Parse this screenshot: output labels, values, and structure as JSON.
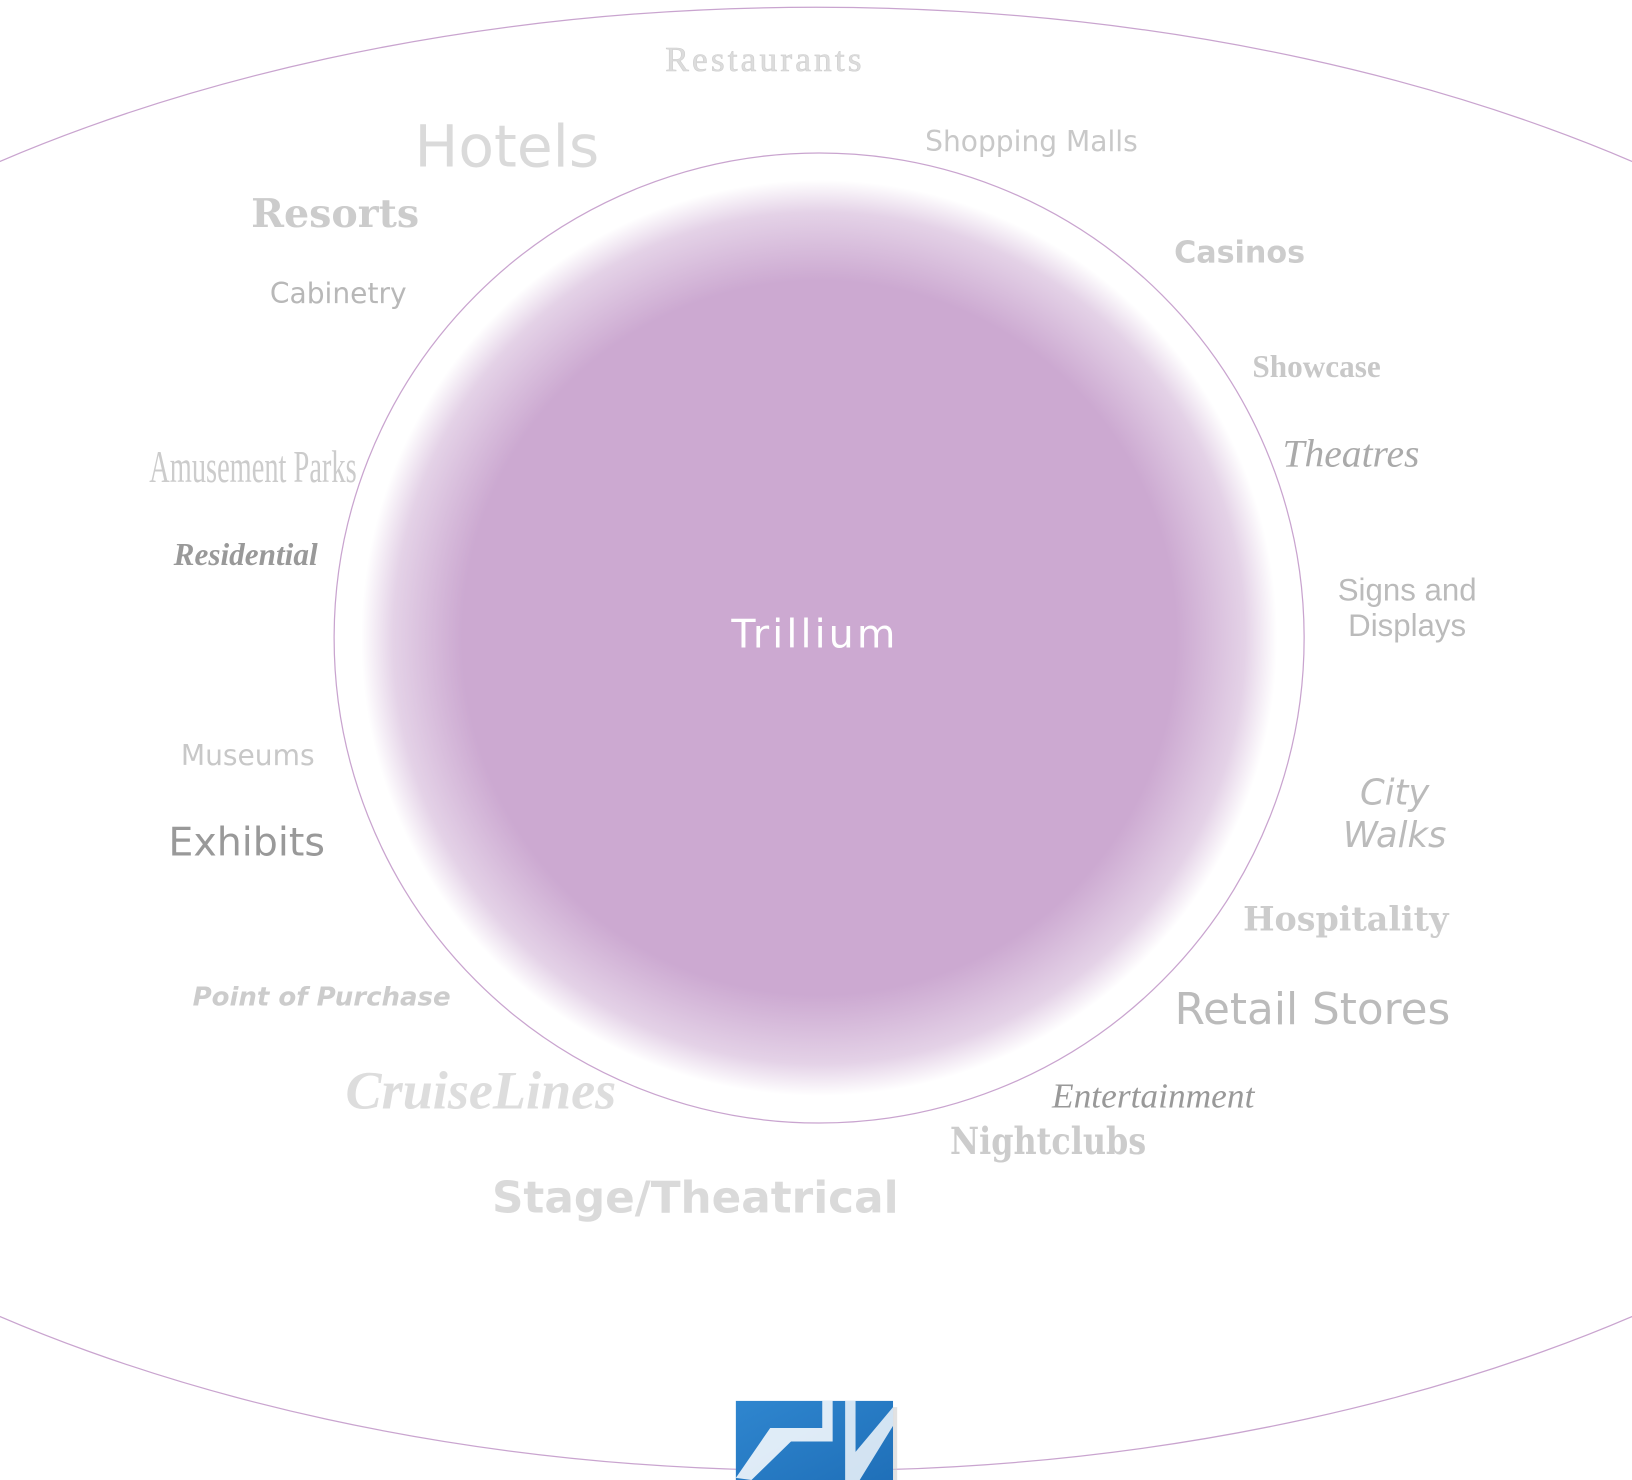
{
  "center": "Trillium",
  "labels": [
    {
      "lines": [
        "Restaurants"
      ]
    },
    {
      "lines": [
        "Hotels"
      ]
    },
    {
      "lines": [
        "Shopping Malls"
      ]
    },
    {
      "lines": [
        "Resorts"
      ]
    },
    {
      "lines": [
        "Cabinetry"
      ]
    },
    {
      "lines": [
        "Casinos"
      ]
    },
    {
      "lines": [
        "Showcase"
      ]
    },
    {
      "lines": [
        "Theatres"
      ]
    },
    {
      "lines": [
        "Amusement Parks"
      ]
    },
    {
      "lines": [
        "Residential"
      ]
    },
    {
      "lines": [
        "Signs and",
        "Displays"
      ]
    },
    {
      "lines": [
        "Museums"
      ]
    },
    {
      "lines": [
        "Exhibits"
      ]
    },
    {
      "lines": [
        "City",
        "Walks"
      ]
    },
    {
      "lines": [
        "Hospitality"
      ]
    },
    {
      "lines": [
        "Point of Purchase"
      ]
    },
    {
      "lines": [
        "Retail Stores"
      ]
    },
    {
      "lines": [
        "CruiseLines"
      ]
    },
    {
      "lines": [
        "Entertainment"
      ]
    },
    {
      "lines": [
        "Nightclubs"
      ]
    },
    {
      "lines": [
        "Stage/Theatrical"
      ]
    }
  ]
}
